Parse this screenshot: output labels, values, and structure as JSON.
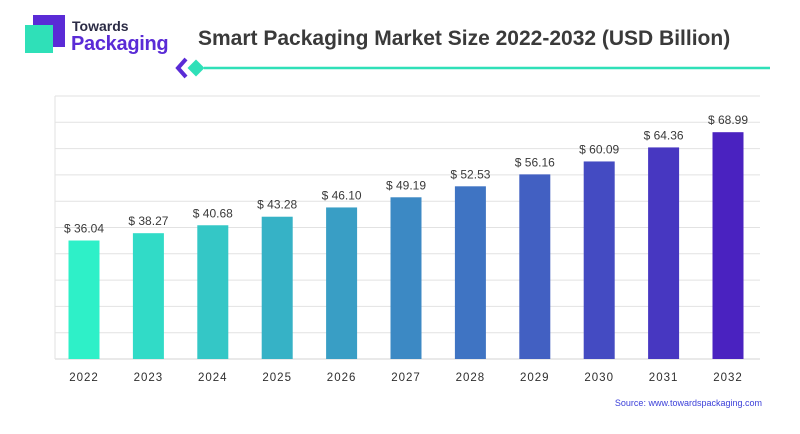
{
  "brand": {
    "line1": "Towards",
    "line2": "Packaging"
  },
  "title": "Smart Packaging Market Size 2022-2032 (USD Billion)",
  "source": "Source: www.towardspackaging.com",
  "colors": {
    "bar_start": "#2ef0c8",
    "bar_end": "#4a22c0",
    "accent_teal": "#2fe0b8",
    "accent_purple": "#5a2bd6",
    "grid": "#e2e2e2"
  },
  "chart_data": {
    "type": "bar",
    "categories": [
      "2022",
      "2023",
      "2024",
      "2025",
      "2026",
      "2027",
      "2028",
      "2029",
      "2030",
      "2031",
      "2032"
    ],
    "values": [
      36.04,
      38.27,
      40.68,
      43.28,
      46.1,
      49.19,
      52.53,
      56.16,
      60.09,
      64.36,
      68.99
    ],
    "value_labels": [
      "$ 36.04",
      "$ 38.27",
      "$ 40.68",
      "$ 43.28",
      "$ 46.10",
      "$ 49.19",
      "$ 52.53",
      "$ 56.16",
      "$ 60.09",
      "$ 64.36",
      "$ 68.99"
    ],
    "ylim": [
      0,
      80
    ],
    "grid": true,
    "legend": "none",
    "xlabel": "",
    "ylabel": ""
  }
}
